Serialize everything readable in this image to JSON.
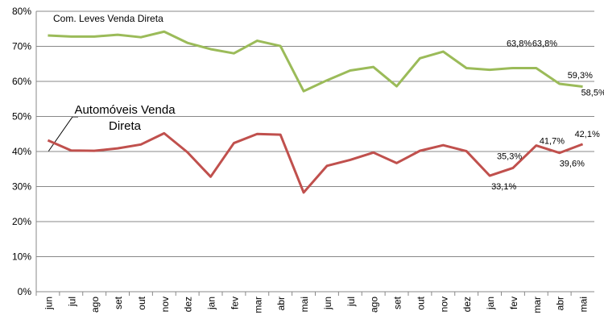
{
  "chart_data": {
    "type": "line",
    "categories": [
      "jun",
      "jul",
      "ago",
      "set",
      "out",
      "nov",
      "dez",
      "jan",
      "fev",
      "mar",
      "abr",
      "mai",
      "jun",
      "jul",
      "ago",
      "set",
      "out",
      "nov",
      "dez",
      "jan",
      "fev",
      "mar",
      "abr",
      "mai"
    ],
    "series": [
      {
        "name": "Com. Leves Venda Direta",
        "color": "#9bbb59",
        "values": [
          73.1,
          72.8,
          72.8,
          73.3,
          72.6,
          74.2,
          71.0,
          69.2,
          68.0,
          71.6,
          70.1,
          57.2,
          60.3,
          63.1,
          64.1,
          58.6,
          66.6,
          68.5,
          63.8,
          63.3,
          63.8,
          63.8,
          59.3,
          58.5
        ],
        "value_labels": [
          null,
          null,
          null,
          null,
          null,
          null,
          null,
          null,
          null,
          null,
          null,
          null,
          null,
          null,
          null,
          null,
          null,
          null,
          null,
          null,
          "63,8%",
          "63,8%",
          "59,3%",
          "58,5%"
        ]
      },
      {
        "name": "Automóveis Venda Direta",
        "color": "#c0504d",
        "values": [
          43.2,
          40.3,
          40.2,
          40.9,
          42.0,
          45.2,
          39.8,
          32.8,
          42.4,
          45.0,
          44.8,
          28.3,
          35.9,
          37.6,
          39.7,
          36.7,
          40.2,
          41.8,
          40.1,
          33.1,
          35.3,
          41.7,
          39.6,
          42.1
        ],
        "value_labels": [
          null,
          null,
          null,
          null,
          null,
          null,
          null,
          null,
          null,
          null,
          null,
          null,
          null,
          null,
          null,
          null,
          null,
          null,
          null,
          "33,1%",
          "35,3%",
          "41,7%",
          "39,6%",
          "42,1%"
        ]
      }
    ],
    "ylim": [
      0,
      80
    ],
    "yticks": [
      {
        "value": 0,
        "label": "0%"
      },
      {
        "value": 10,
        "label": "10%"
      },
      {
        "value": 20,
        "label": "20%"
      },
      {
        "value": 30,
        "label": "30%"
      },
      {
        "value": 40,
        "label": "40%"
      },
      {
        "value": 50,
        "label": "50%"
      },
      {
        "value": 60,
        "label": "60%"
      },
      {
        "value": 70,
        "label": "70%"
      },
      {
        "value": 80,
        "label": "80%"
      }
    ],
    "grid": true
  }
}
